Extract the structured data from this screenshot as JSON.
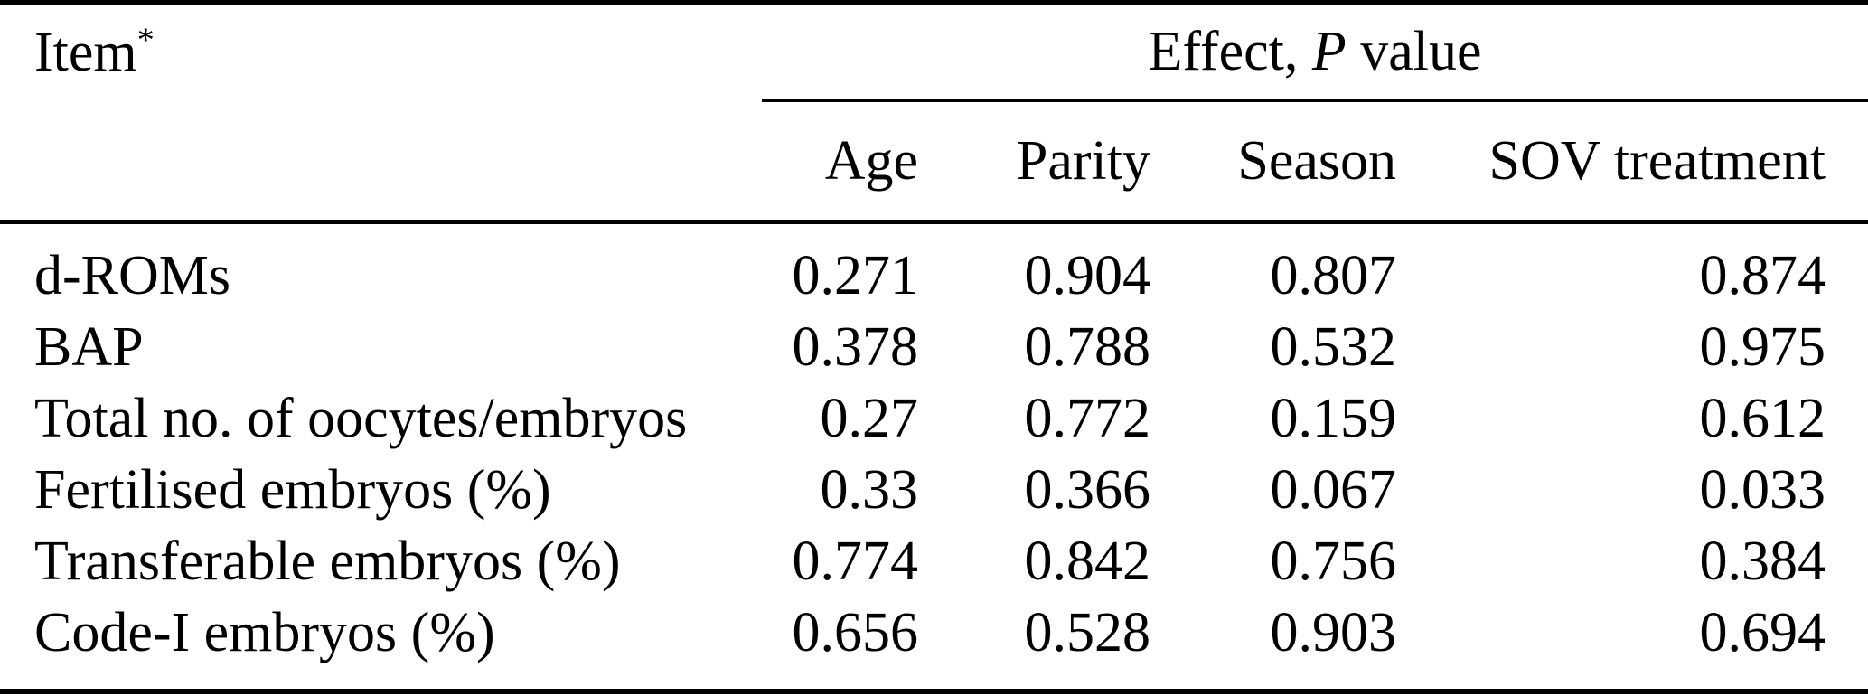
{
  "page": {
    "background_color": "#ffffff",
    "text_color": "#000000",
    "rule_color": "#000000"
  },
  "table": {
    "item_header": {
      "label": "Item",
      "footnote_marker": "*"
    },
    "effect_header": {
      "prefix": "Effect, ",
      "pvalue_symbol": "P",
      "suffix": " value"
    },
    "effect_columns": [
      "Age",
      "Parity",
      "Season",
      "SOV treatment"
    ],
    "rows": [
      {
        "item": "d-ROMs",
        "values": [
          "0.271",
          "0.904",
          "0.807",
          "0.874"
        ]
      },
      {
        "item": "BAP",
        "values": [
          "0.378",
          "0.788",
          "0.532",
          "0.975"
        ]
      },
      {
        "item": "Total no. of oocytes/embryos",
        "values": [
          "0.27",
          "0.772",
          "0.159",
          "0.612"
        ]
      },
      {
        "item": "Fertilised embryos (%)",
        "values": [
          "0.33",
          "0.366",
          "0.067",
          "0.033"
        ]
      },
      {
        "item": "Transferable embryos (%)",
        "values": [
          "0.774",
          "0.842",
          "0.756",
          "0.384"
        ]
      },
      {
        "item": "Code-I embryos (%)",
        "values": [
          "0.656",
          "0.528",
          "0.903",
          "0.694"
        ]
      }
    ]
  }
}
